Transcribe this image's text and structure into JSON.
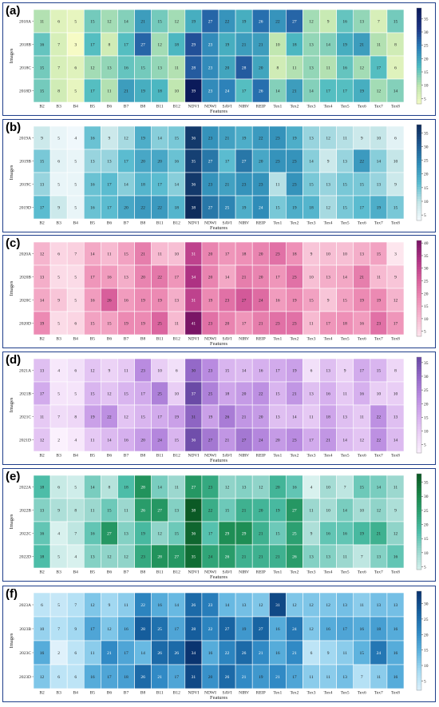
{
  "chart_data": [
    {
      "type": "heatmap",
      "panel_label": "(a)",
      "ylabel": "Images",
      "xlabel": "Features",
      "x": [
        "B2",
        "B3",
        "B4",
        "B5",
        "B6",
        "B7",
        "B8",
        "B11",
        "B12",
        "NDVI",
        "NDWI",
        "SAVI",
        "NIRV",
        "REIP",
        "Tex1",
        "Tex2",
        "Tex3",
        "Tex4",
        "Tex5",
        "Tex6",
        "Tex7",
        "Tex8"
      ],
      "y": [
        "2018A",
        "2018B",
        "2018C",
        "2018D"
      ],
      "values": [
        [
          11,
          6,
          5,
          15,
          12,
          14,
          21,
          15,
          12,
          19,
          27,
          22,
          19,
          26,
          22,
          27,
          12,
          9,
          16,
          13,
          7,
          15
        ],
        [
          16,
          7,
          3,
          17,
          8,
          17,
          27,
          12,
          18,
          29,
          23,
          19,
          21,
          21,
          10,
          18,
          13,
          14,
          19,
          21,
          11,
          8
        ],
        [
          15,
          7,
          6,
          12,
          13,
          16,
          15,
          13,
          11,
          28,
          23,
          20,
          28,
          20,
          8,
          11,
          13,
          11,
          16,
          12,
          17,
          6
        ],
        [
          15,
          8,
          5,
          17,
          11,
          21,
          19,
          18,
          10,
          39,
          23,
          24,
          17,
          26,
          14,
          21,
          14,
          17,
          17,
          19,
          12,
          14
        ]
      ],
      "colorbar_ticks": [
        5,
        10,
        15,
        20,
        25,
        30,
        35
      ],
      "vmin": 3,
      "vmax": 39,
      "colors": [
        "#f6fbc5",
        "#bfe6b0",
        "#4fbcc2",
        "#2a7db8",
        "#1d3484",
        "#0b1a5a"
      ]
    },
    {
      "type": "heatmap",
      "panel_label": "(b)",
      "ylabel": "Images",
      "xlabel": "Features",
      "x": [
        "B2",
        "B3",
        "B4",
        "B5",
        "B6",
        "B7",
        "B8",
        "B11",
        "B12",
        "NDVI",
        "NDWI",
        "SAVI",
        "NIRV",
        "REIP",
        "Tex1",
        "Tex2",
        "Tex3",
        "Tex4",
        "Tex5",
        "Tex6",
        "Tex7",
        "Tex8"
      ],
      "y": [
        "2019A",
        "2019B",
        "2019C",
        "2019D"
      ],
      "values": [
        [
          9,
          5,
          4,
          16,
          9,
          12,
          19,
          14,
          15,
          36,
          23,
          21,
          19,
          22,
          23,
          19,
          13,
          12,
          11,
          9,
          10,
          6
        ],
        [
          15,
          6,
          5,
          13,
          13,
          17,
          20,
          20,
          16,
          35,
          27,
          17,
          27,
          20,
          23,
          23,
          14,
          9,
          13,
          22,
          14,
          10
        ],
        [
          13,
          5,
          5,
          16,
          17,
          14,
          18,
          17,
          14,
          36,
          23,
          21,
          23,
          23,
          11,
          23,
          15,
          13,
          15,
          15,
          13,
          9
        ],
        [
          17,
          9,
          5,
          16,
          17,
          20,
          22,
          22,
          18,
          38,
          27,
          25,
          19,
          24,
          15,
          19,
          18,
          12,
          15,
          17,
          19,
          15
        ]
      ],
      "colorbar_ticks": [
        5,
        10,
        15,
        20,
        25,
        30,
        35
      ],
      "vmin": 3,
      "vmax": 38,
      "colors": [
        "#f7fbff",
        "#c5e6e8",
        "#5bbcd0",
        "#2f8cb8",
        "#1f5a92",
        "#0e2c5c"
      ]
    },
    {
      "type": "heatmap",
      "panel_label": "(c)",
      "ylabel": "Images",
      "xlabel": "Features",
      "x": [
        "B2",
        "B3",
        "B4",
        "B5",
        "B6",
        "B7",
        "B8",
        "B11",
        "B12",
        "NDVI",
        "NDWI",
        "SAVI",
        "NIRV",
        "REIP",
        "Tex1",
        "Tex2",
        "Tex3",
        "Tex4",
        "Tex5",
        "Tex6",
        "Tex7",
        "Tex8"
      ],
      "y": [
        "2020A",
        "2020B",
        "2020C",
        "2020D"
      ],
      "values": [
        [
          12,
          6,
          7,
          14,
          11,
          15,
          21,
          11,
          10,
          31,
          20,
          17,
          18,
          20,
          23,
          18,
          9,
          10,
          10,
          13,
          15,
          3
        ],
        [
          13,
          5,
          5,
          17,
          16,
          13,
          20,
          22,
          17,
          34,
          20,
          14,
          21,
          20,
          17,
          23,
          10,
          13,
          14,
          21,
          11,
          9
        ],
        [
          14,
          9,
          5,
          16,
          26,
          16,
          19,
          19,
          13,
          31,
          19,
          23,
          27,
          24,
          16,
          19,
          15,
          9,
          15,
          19,
          19,
          12
        ],
        [
          19,
          5,
          6,
          15,
          15,
          19,
          19,
          25,
          11,
          41,
          23,
          20,
          17,
          21,
          23,
          23,
          11,
          17,
          18,
          16,
          23,
          17
        ]
      ],
      "colorbar_ticks": [
        5,
        10,
        15,
        20,
        25,
        30,
        35,
        40
      ],
      "vmin": 3,
      "vmax": 41,
      "colors": [
        "#fde6ee",
        "#f7bcd2",
        "#ee8fb6",
        "#d9609c",
        "#b23486",
        "#7a1566"
      ]
    },
    {
      "type": "heatmap",
      "panel_label": "(d)",
      "ylabel": "Images",
      "xlabel": "Features",
      "x": [
        "B2",
        "B3",
        "B4",
        "B5",
        "B6",
        "B7",
        "B8",
        "B11",
        "B12",
        "NDVI",
        "NDWI",
        "SAVI",
        "NIRV",
        "REIP",
        "Tex1",
        "Tex2",
        "Tex3",
        "Tex4",
        "Tex5",
        "Tex6",
        "Tex7",
        "Tex8"
      ],
      "y": [
        "2021A",
        "2021B",
        "2021C",
        "2021D"
      ],
      "values": [
        [
          13,
          4,
          6,
          12,
          9,
          11,
          23,
          10,
          6,
          30,
          23,
          15,
          14,
          16,
          17,
          19,
          6,
          13,
          9,
          17,
          15,
          8
        ],
        [
          17,
          5,
          5,
          15,
          12,
          15,
          17,
          25,
          10,
          37,
          25,
          18,
          20,
          22,
          15,
          21,
          13,
          16,
          11,
          16,
          10,
          10
        ],
        [
          11,
          7,
          8,
          19,
          22,
          12,
          15,
          17,
          19,
          31,
          19,
          26,
          21,
          20,
          13,
          14,
          11,
          18,
          13,
          11,
          22,
          13
        ],
        [
          12,
          2,
          4,
          11,
          14,
          16,
          20,
          24,
          15,
          36,
          27,
          21,
          27,
          24,
          20,
          23,
          17,
          21,
          14,
          12,
          22,
          14
        ]
      ],
      "colorbar_ticks": [
        5,
        10,
        15,
        20,
        25,
        30,
        35
      ],
      "vmin": 2,
      "vmax": 37,
      "colors": [
        "#fbf1fd",
        "#ecd3f6",
        "#d6b0ee",
        "#b98be0",
        "#9469c8",
        "#6a4aa6"
      ]
    },
    {
      "type": "heatmap",
      "panel_label": "(e)",
      "ylabel": "Images",
      "xlabel": "Features",
      "x": [
        "B2",
        "B3",
        "B4",
        "B5",
        "B6",
        "B7",
        "B8",
        "B11",
        "B12",
        "NDVI",
        "NDWI",
        "SAVI",
        "NIRV",
        "REIP",
        "Tex1",
        "Tex2",
        "Tex3",
        "Tex4",
        "Tex5",
        "Tex6",
        "Tex7",
        "Tex8"
      ],
      "y": [
        "2022A",
        "2022B",
        "2022C",
        "2022D"
      ],
      "values": [
        [
          18,
          6,
          5,
          14,
          8,
          18,
          28,
          14,
          11,
          27,
          23,
          12,
          13,
          12,
          20,
          16,
          4,
          10,
          7,
          15,
          14,
          11
        ],
        [
          13,
          9,
          8,
          11,
          15,
          11,
          26,
          27,
          13,
          38,
          22,
          15,
          21,
          20,
          19,
          27,
          11,
          10,
          14,
          10,
          12,
          9
        ],
        [
          16,
          4,
          7,
          16,
          27,
          13,
          19,
          12,
          15,
          36,
          17,
          29,
          29,
          21,
          15,
          25,
          9,
          16,
          16,
          19,
          21,
          12
        ],
        [
          18,
          5,
          4,
          13,
          12,
          12,
          23,
          28,
          27,
          35,
          24,
          26,
          21,
          21,
          21,
          26,
          13,
          13,
          11,
          7,
          13,
          16
        ]
      ],
      "colorbar_ticks": [
        5,
        10,
        15,
        20,
        25,
        30,
        35
      ],
      "vmin": 4,
      "vmax": 38,
      "colors": [
        "#d8f1ee",
        "#9ed9d0",
        "#4fbfab",
        "#2ea375",
        "#178446",
        "#0b5a25"
      ]
    },
    {
      "type": "heatmap",
      "panel_label": "(f)",
      "ylabel": "Images",
      "xlabel": "Features",
      "x": [
        "B2",
        "B3",
        "B4",
        "B5",
        "B6",
        "B7",
        "B8",
        "B11",
        "B12",
        "NDVI",
        "NDWI",
        "SAVI",
        "NIRV",
        "REIP",
        "Tex1",
        "Tex2",
        "Tex3",
        "Tex4",
        "Tex5",
        "Tex6",
        "Tex7",
        "Tex8"
      ],
      "y": [
        "2023A",
        "2023B",
        "2023C",
        "2023D"
      ],
      "values": [
        [
          6,
          5,
          7,
          12,
          9,
          11,
          22,
          16,
          14,
          26,
          23,
          14,
          13,
          12,
          31,
          12,
          12,
          12,
          13,
          11,
          13,
          13
        ],
        [
          10,
          7,
          9,
          17,
          12,
          16,
          28,
          25,
          17,
          28,
          22,
          27,
          19,
          27,
          16,
          24,
          12,
          16,
          17,
          16,
          18,
          16
        ],
        [
          16,
          2,
          6,
          11,
          21,
          17,
          14,
          26,
          26,
          34,
          16,
          22,
          26,
          21,
          16,
          21,
          6,
          9,
          11,
          15,
          24,
          16
        ],
        [
          12,
          6,
          6,
          16,
          17,
          18,
          26,
          21,
          17,
          31,
          20,
          26,
          21,
          19,
          21,
          17,
          11,
          11,
          13,
          7,
          11,
          16
        ]
      ],
      "colorbar_ticks": [
        5,
        10,
        15,
        20,
        25,
        30
      ],
      "vmin": 2,
      "vmax": 34,
      "colors": [
        "#dff1fb",
        "#a9dcf3",
        "#5fb4df",
        "#2f89c4",
        "#16609f",
        "#0a3470"
      ]
    }
  ]
}
